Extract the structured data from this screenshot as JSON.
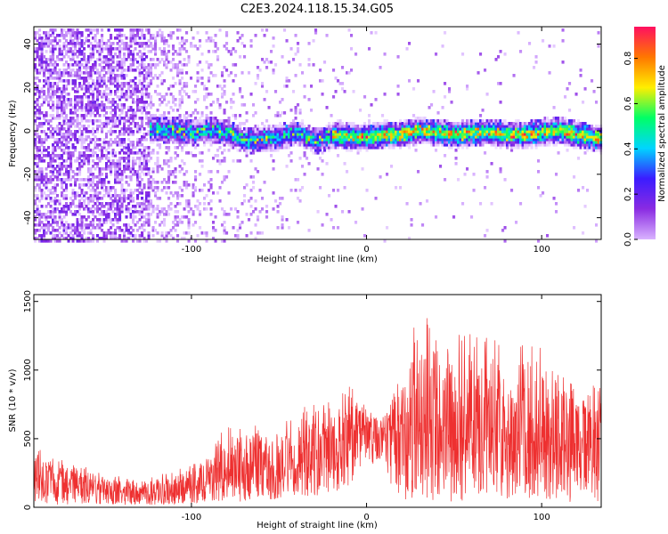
{
  "title": "C2E3.2024.118.15.34.G05",
  "colors": {
    "snr_line": "#ee3030",
    "colormap": [
      "#ffffff",
      "#d9b3ff",
      "#8a2be2",
      "#3b1cff",
      "#00d5ff",
      "#00ff66",
      "#ffee00",
      "#ff7700",
      "#ff1060"
    ]
  },
  "chart_data": [
    {
      "type": "heatmap",
      "xlabel": "Height of straight line (km)",
      "ylabel": "Frequency (Hz)",
      "xlim": [
        -190,
        134
      ],
      "ylim": [
        -50,
        48
      ],
      "xticks": [
        -100,
        0,
        100
      ],
      "xtick_labels": [
        "-100",
        "0",
        "100"
      ],
      "yticks": [
        -40,
        -20,
        0,
        20,
        40
      ],
      "ytick_labels": [
        "-40",
        "-20",
        "0",
        "20",
        "40"
      ],
      "grid": false,
      "colorbar": {
        "label": "Normalized spectral amplitude",
        "range": [
          0.0,
          0.94
        ],
        "ticks": [
          0.0,
          0.2,
          0.4,
          0.6,
          0.8
        ],
        "tick_labels": [
          "0.0",
          "0.2",
          "0.4",
          "0.6",
          "0.8"
        ]
      },
      "ridge": {
        "x": [
          -125,
          -110,
          -100,
          -90,
          -80,
          -70,
          -60,
          -50,
          -40,
          -30,
          -20,
          -10,
          0,
          10,
          20,
          30,
          40,
          50,
          60,
          70,
          80,
          90,
          100,
          110,
          120,
          134
        ],
        "y": [
          2,
          1,
          0,
          1,
          0,
          -4,
          -3,
          -2,
          0,
          -4,
          -1,
          -2,
          -2,
          -1,
          -1,
          1,
          0,
          -1,
          0,
          0,
          -1,
          -1,
          0,
          1,
          -1,
          -3
        ]
      },
      "ridge_start_x": -125,
      "noise_edge_x": -125
    },
    {
      "type": "line",
      "xlabel": "Height of straight line (km)",
      "ylabel": "SNR (10 * v/v)",
      "xlim": [
        -190,
        134
      ],
      "ylim": [
        0,
        1550
      ],
      "xticks": [
        -100,
        0,
        100
      ],
      "xtick_labels": [
        "-100",
        "0",
        "100"
      ],
      "yticks": [
        0,
        500,
        1000,
        1500
      ],
      "ytick_labels": [
        "0",
        "500",
        "1000",
        "1500"
      ],
      "grid": false,
      "envelope": {
        "x": [
          -190,
          -175,
          -160,
          -145,
          -130,
          -115,
          -100,
          -90,
          -85,
          -75,
          -60,
          -45,
          -30,
          -20,
          -10,
          -5,
          0,
          10,
          20,
          30,
          40,
          50,
          60,
          80,
          100,
          110,
          120,
          134
        ],
        "low": [
          20,
          20,
          20,
          20,
          15,
          15,
          20,
          30,
          40,
          40,
          50,
          60,
          80,
          100,
          150,
          200,
          350,
          250,
          50,
          60,
          40,
          40,
          50,
          50,
          60,
          40,
          40,
          40
        ],
        "mid": [
          180,
          170,
          150,
          120,
          100,
          110,
          150,
          180,
          200,
          220,
          260,
          300,
          350,
          380,
          450,
          500,
          560,
          560,
          520,
          650,
          550,
          500,
          520,
          520,
          480,
          500,
          480,
          500
        ],
        "high": [
          480,
          350,
          300,
          250,
          200,
          250,
          320,
          380,
          600,
          580,
          600,
          700,
          750,
          800,
          900,
          920,
          700,
          750,
          1000,
          1550,
          1400,
          1250,
          1300,
          1200,
          1200,
          1050,
          900,
          920
        ]
      }
    }
  ]
}
